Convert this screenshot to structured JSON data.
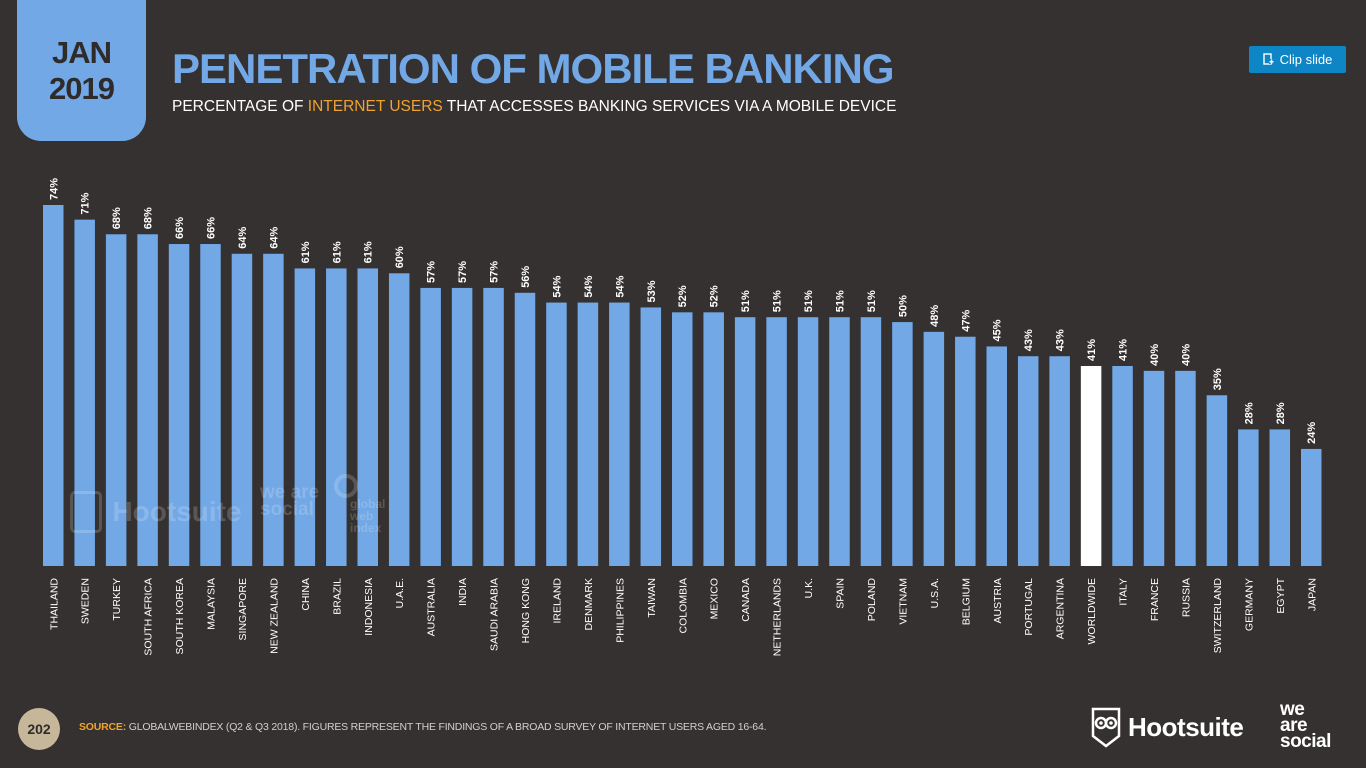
{
  "header": {
    "badge_month": "JAN",
    "badge_year": "2019",
    "title": "PENETRATION OF MOBILE BANKING",
    "subtitle_pre": "PERCENTAGE OF ",
    "subtitle_highlight": "INTERNET USERS",
    "subtitle_post": " THAT ACCESSES BANKING SERVICES VIA A MOBILE DEVICE"
  },
  "clip_button": {
    "label": "Clip slide",
    "icon": "clip-icon"
  },
  "colors": {
    "background": "#353130",
    "bar": "#72a8e6",
    "highlight_bar": "#ffffff",
    "accent": "#f1a32e",
    "clip_button": "#0e86c6"
  },
  "watermarks": {
    "hootsuite": "Hootsuite",
    "we_are_social": "we are social",
    "global_web_index": "global web index"
  },
  "chart_data": {
    "type": "bar",
    "title": "PENETRATION OF MOBILE BANKING",
    "xlabel": "",
    "ylabel": "",
    "ylim": [
      0,
      80
    ],
    "grid": false,
    "value_suffix": "%",
    "highlight_category": "WORLDWIDE",
    "categories": [
      "THAILAND",
      "SWEDEN",
      "TURKEY",
      "SOUTH AFRICA",
      "SOUTH KOREA",
      "MALAYSIA",
      "SINGAPORE",
      "NEW ZEALAND",
      "CHINA",
      "BRAZIL",
      "INDONESIA",
      "U.A.E.",
      "AUSTRALIA",
      "INDIA",
      "SAUDI ARABIA",
      "HONG KONG",
      "IRELAND",
      "DENMARK",
      "PHILIPPINES",
      "TAIWAN",
      "COLOMBIA",
      "MEXICO",
      "CANADA",
      "NETHERLANDS",
      "U.K.",
      "SPAIN",
      "POLAND",
      "VIETNAM",
      "U.S.A.",
      "BELGIUM",
      "AUSTRIA",
      "PORTUGAL",
      "ARGENTINA",
      "WORLDWIDE",
      "ITALY",
      "FRANCE",
      "RUSSIA",
      "SWITZERLAND",
      "GERMANY",
      "EGYPT",
      "JAPAN"
    ],
    "values": [
      74,
      71,
      68,
      68,
      66,
      66,
      64,
      64,
      61,
      61,
      61,
      60,
      57,
      57,
      57,
      56,
      54,
      54,
      54,
      53,
      52,
      52,
      51,
      51,
      51,
      51,
      51,
      50,
      48,
      47,
      45,
      43,
      43,
      41,
      41,
      40,
      40,
      35,
      28,
      28,
      24
    ]
  },
  "footer": {
    "page_number": "202",
    "source_label": "SOURCE:",
    "source_text": " GLOBALWEBINDEX (Q2 & Q3 2018). FIGURES REPRESENT THE FINDINGS OF A BROAD SURVEY OF INTERNET USERS AGED 16-64.",
    "logo_hootsuite": "Hootsuite",
    "logo_we": "we",
    "logo_are": "are",
    "logo_social": "social"
  }
}
